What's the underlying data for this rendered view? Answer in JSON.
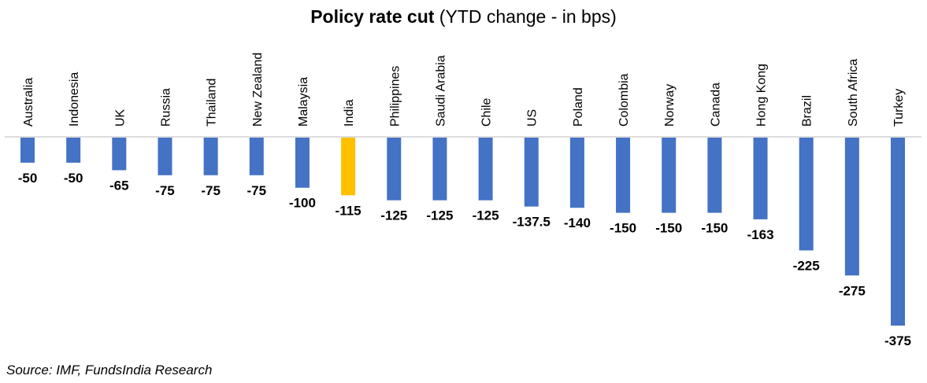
{
  "chart_data": {
    "type": "bar",
    "title_bold": "Policy rate cut",
    "title_rest": " (YTD change - in bps)",
    "xlabel": "",
    "ylabel": "",
    "categories": [
      "Australia",
      "Indonesia",
      "UK",
      "Russia",
      "Thailand",
      "New Zealand",
      "Malaysia",
      "India",
      "Philippines",
      "Saudi Arabia",
      "Chile",
      "US",
      "Poland",
      "Colombia",
      "Norway",
      "Canada",
      "Hong Kong",
      "Brazil",
      "South Africa",
      "Turkey"
    ],
    "values": [
      -50,
      -50,
      -65,
      -75,
      -75,
      -75,
      -100,
      -115,
      -125,
      -125,
      -125,
      -137.5,
      -140,
      -150,
      -150,
      -150,
      -163,
      -225,
      -275,
      -375
    ],
    "data_labels": [
      "-50",
      "-50",
      "-65",
      "-75",
      "-75",
      "-75",
      "-100",
      "-115",
      "-125",
      "-125",
      "-125",
      "-137.5",
      "-140",
      "-150",
      "-150",
      "-150",
      "-163",
      "-225",
      "-275",
      "-375"
    ],
    "highlight_category": "India",
    "colors": {
      "default": "#4472C4",
      "highlight": "#FFC000",
      "axis": "#D0D0D0"
    },
    "ylim": [
      -375,
      0
    ],
    "grid": false,
    "legend": "none"
  },
  "footer": {
    "source": "Source: IMF, FundsIndia Research"
  }
}
